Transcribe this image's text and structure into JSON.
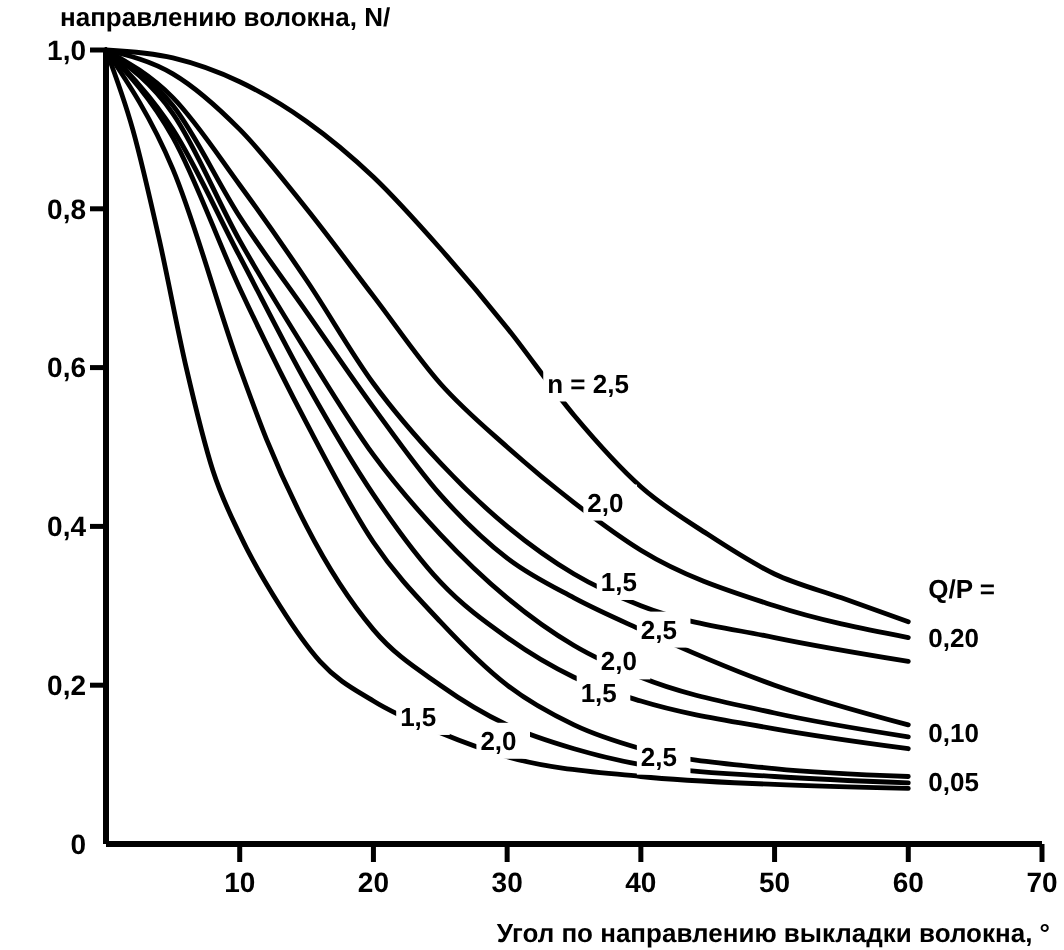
{
  "chart_data": {
    "type": "line",
    "ylabel": "направлению волокна, N/",
    "xlabel": "Угол по направлению выкладки волокна, °",
    "xlim": [
      0,
      70
    ],
    "xticks": [
      10,
      20,
      30,
      40,
      50,
      60,
      70
    ],
    "ylim": [
      0,
      1
    ],
    "yticks": [
      {
        "value": 0,
        "label": "0"
      },
      {
        "value": 0.2,
        "label": "0,2"
      },
      {
        "value": 0.4,
        "label": "0,4"
      },
      {
        "value": 0.6,
        "label": "0,6"
      },
      {
        "value": 0.8,
        "label": "0,8"
      },
      {
        "value": 1,
        "label": "1,0"
      }
    ],
    "grid": false,
    "marker": "none",
    "line_style": "solid",
    "series": [
      {
        "color": "#000000",
        "x": [
          0,
          5,
          10,
          15,
          20,
          25,
          30,
          35,
          40,
          45,
          50,
          55,
          60
        ],
        "values": [
          1,
          0.99,
          0.96,
          0.91,
          0.84,
          0.75,
          0.65,
          0.54,
          0.45,
          0.39,
          0.34,
          0.31,
          0.28
        ]
      },
      {
        "color": "#000000",
        "x": [
          0,
          5,
          10,
          15,
          20,
          25,
          30,
          35,
          40,
          50,
          60
        ],
        "values": [
          1,
          0.97,
          0.9,
          0.8,
          0.69,
          0.58,
          0.5,
          0.43,
          0.37,
          0.3,
          0.26
        ]
      },
      {
        "color": "#000000",
        "x": [
          0,
          5,
          10,
          15,
          20,
          25,
          30,
          35,
          40,
          50,
          60
        ],
        "values": [
          1,
          0.94,
          0.83,
          0.71,
          0.58,
          0.48,
          0.4,
          0.34,
          0.3,
          0.26,
          0.23
        ]
      },
      {
        "color": "#000000",
        "x": [
          0,
          5,
          10,
          15,
          20,
          25,
          30,
          35,
          40,
          50,
          60
        ],
        "values": [
          1,
          0.93,
          0.79,
          0.67,
          0.55,
          0.44,
          0.36,
          0.31,
          0.27,
          0.2,
          0.15
        ]
      },
      {
        "color": "#000000",
        "x": [
          0,
          5,
          10,
          15,
          20,
          25,
          30,
          35,
          40,
          50,
          60
        ],
        "values": [
          1,
          0.92,
          0.76,
          0.62,
          0.49,
          0.39,
          0.31,
          0.25,
          0.21,
          0.165,
          0.135
        ]
      },
      {
        "color": "#000000",
        "x": [
          0,
          5,
          10,
          15,
          20,
          25,
          30,
          35,
          40,
          50,
          60
        ],
        "values": [
          1,
          0.9,
          0.74,
          0.58,
          0.44,
          0.33,
          0.26,
          0.21,
          0.18,
          0.145,
          0.12
        ]
      },
      {
        "color": "#000000",
        "x": [
          0,
          5,
          10,
          15,
          20,
          25,
          30,
          35,
          40,
          50,
          60
        ],
        "values": [
          1,
          0.89,
          0.7,
          0.53,
          0.38,
          0.28,
          0.2,
          0.15,
          0.12,
          0.095,
          0.085
        ]
      },
      {
        "color": "#000000",
        "x": [
          0,
          5,
          10,
          12,
          15,
          20,
          25,
          30,
          35,
          40,
          50,
          60
        ],
        "values": [
          1,
          0.85,
          0.6,
          0.51,
          0.4,
          0.27,
          0.2,
          0.15,
          0.12,
          0.1,
          0.085,
          0.077
        ]
      },
      {
        "color": "#000000",
        "x": [
          0,
          2,
          4,
          6,
          8,
          10,
          13,
          16,
          20,
          25,
          30,
          40,
          50,
          60
        ],
        "values": [
          1,
          0.9,
          0.76,
          0.6,
          0.47,
          0.39,
          0.3,
          0.23,
          0.18,
          0.14,
          0.11,
          0.085,
          0.075,
          0.07
        ]
      }
    ],
    "annotations": [
      {
        "text": "n = 2,5",
        "x": 33,
        "y": 0.58
      },
      {
        "text": "2,0",
        "x": 36,
        "y": 0.43
      },
      {
        "text": "1,5",
        "x": 37,
        "y": 0.33
      },
      {
        "text": "2,5",
        "x": 40,
        "y": 0.27
      },
      {
        "text": "2,0",
        "x": 37,
        "y": 0.23
      },
      {
        "text": "1,5",
        "x": 35.5,
        "y": 0.19
      },
      {
        "text": "1,5",
        "x": 22,
        "y": 0.16
      },
      {
        "text": "2,0",
        "x": 28,
        "y": 0.13
      },
      {
        "text": "2,5",
        "x": 40,
        "y": 0.11
      },
      "Q/P =",
      {
        "text": "0,20",
        "x": 60,
        "y": 0.26
      },
      {
        "text": "0,10",
        "x": 60,
        "y": 0.14
      },
      {
        "text": "0,05",
        "x": 60,
        "y": 0.078
      }
    ]
  }
}
